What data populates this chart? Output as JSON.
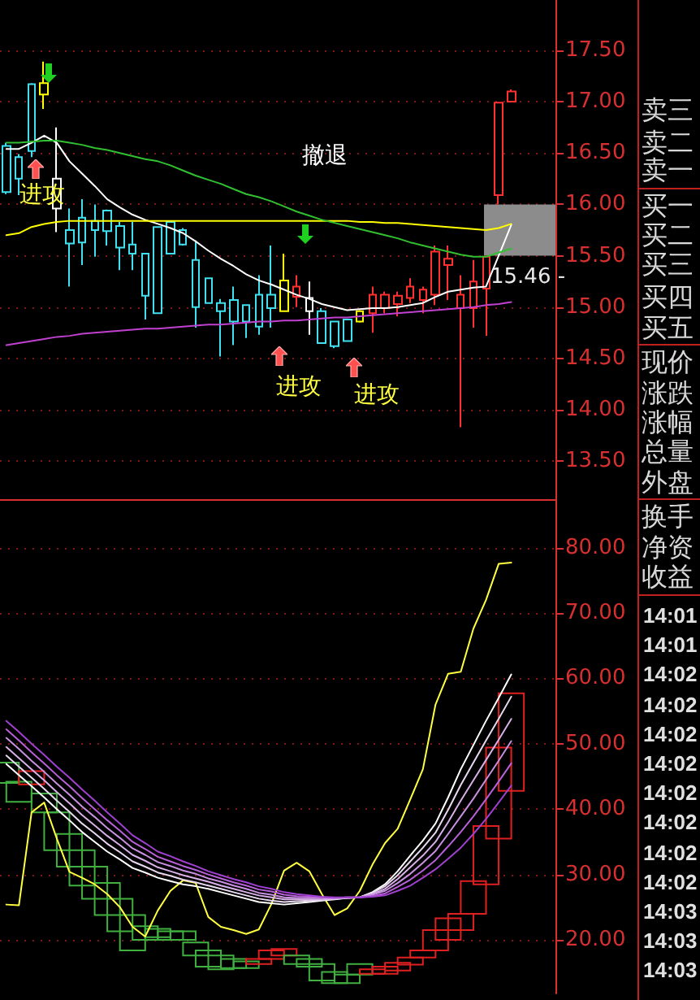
{
  "chart_data": [
    {
      "type": "candlestick",
      "categories": [
        null,
        null,
        null,
        null,
        null,
        null,
        null,
        null,
        null,
        null,
        null,
        null,
        null,
        null,
        null,
        null,
        null,
        null,
        null,
        null,
        null,
        null,
        null,
        null,
        null,
        null,
        null,
        null,
        null,
        null,
        null,
        null,
        null,
        null,
        null,
        null,
        null,
        null,
        null,
        null,
        null,
        null,
        null,
        null
      ],
      "ohlc": [
        [
          16.57,
          16.6,
          16.1,
          16.12
        ],
        [
          16.46,
          16.49,
          16.09,
          16.25
        ],
        [
          17.17,
          17.18,
          16.46,
          16.52
        ],
        [
          17.18,
          17.39,
          16.93,
          17.07
        ],
        [
          16.25,
          16.75,
          15.73,
          15.96
        ],
        [
          15.75,
          15.96,
          15.2,
          15.62
        ],
        [
          15.87,
          16.05,
          15.41,
          15.63
        ],
        [
          15.84,
          16.0,
          15.49,
          15.75
        ],
        [
          15.94,
          15.95,
          15.6,
          15.74
        ],
        [
          15.79,
          15.83,
          15.36,
          15.58
        ],
        [
          15.61,
          15.83,
          15.36,
          15.52
        ],
        [
          15.52,
          15.52,
          14.88,
          15.11
        ],
        [
          15.78,
          15.78,
          14.94,
          14.94
        ],
        [
          15.83,
          15.84,
          15.52,
          15.52
        ],
        [
          15.75,
          15.77,
          15.6,
          15.61
        ],
        [
          15.46,
          15.65,
          14.8,
          15.0
        ],
        [
          15.28,
          15.28,
          15.04,
          15.04
        ],
        [
          15.04,
          15.08,
          14.52,
          14.96
        ],
        [
          15.07,
          15.2,
          14.63,
          14.86
        ],
        [
          15.02,
          15.02,
          14.7,
          14.86
        ],
        [
          15.12,
          15.31,
          14.73,
          14.81
        ],
        [
          15.12,
          15.6,
          14.8,
          14.99
        ],
        [
          15.26,
          15.52,
          14.96,
          14.96
        ],
        [
          15.1,
          15.31,
          15.0,
          15.2
        ],
        [
          15.09,
          15.25,
          14.73,
          14.96
        ],
        [
          14.96,
          14.99,
          14.65,
          14.65
        ],
        [
          14.86,
          14.86,
          14.6,
          14.62
        ],
        [
          14.88,
          14.88,
          14.67,
          14.67
        ],
        [
          14.96,
          14.97,
          14.85,
          14.86
        ],
        [
          14.94,
          15.2,
          14.75,
          15.12
        ],
        [
          14.99,
          15.15,
          14.94,
          15.12
        ],
        [
          15.03,
          15.15,
          14.91,
          15.11
        ],
        [
          15.09,
          15.28,
          15.04,
          15.2
        ],
        [
          15.07,
          15.2,
          14.94,
          15.17
        ],
        [
          15.12,
          15.6,
          15.02,
          15.54
        ],
        [
          15.41,
          15.6,
          15.07,
          15.47
        ],
        [
          14.99,
          15.31,
          13.83,
          15.12
        ],
        [
          14.99,
          15.46,
          14.8,
          15.25
        ],
        [
          15.18,
          15.49,
          14.72,
          15.49
        ],
        [
          16.09,
          16.99,
          16.0,
          16.99
        ],
        [
          17.0,
          17.12,
          17.0,
          17.1
        ],
        null,
        null,
        null
      ],
      "colors": [
        "#40e0f0",
        "#40e0f0",
        "#40e0f0",
        "#ffff00",
        "#ffffff",
        "#40e0f0",
        "#40e0f0",
        "#40e0f0",
        "#40e0f0",
        "#40e0f0",
        "#40e0f0",
        "#40e0f0",
        "#40e0f0",
        "#40e0f0",
        "#40e0f0",
        "#40e0f0",
        "#40e0f0",
        "#40e0f0",
        "#40e0f0",
        "#40e0f0",
        "#40e0f0",
        "#40e0f0",
        "#ffff00",
        "#ff3030",
        "#ffffff",
        "#40e0f0",
        "#40e0f0",
        "#40e0f0",
        "#ffff00",
        "#ff3030",
        "#ff3030",
        "#ff3030",
        "#ff3030",
        "#ff3030",
        "#ff3030",
        "#ff3030",
        "#ff3030",
        "#ff3030",
        "#ff3030",
        "#ff3030",
        "#ff3030",
        null,
        null,
        null
      ],
      "series": [
        {
          "type": "line",
          "color": "#ffffff",
          "values": [
            16.54,
            16.54,
            16.6,
            16.67,
            16.6,
            16.42,
            16.3,
            16.18,
            16.05,
            15.97,
            15.9,
            15.85,
            15.81,
            15.77,
            15.72,
            15.64,
            15.55,
            15.47,
            15.4,
            15.32,
            15.26,
            15.22,
            15.17,
            15.12,
            15.08,
            15.03,
            15.0,
            14.97,
            14.98,
            14.99,
            14.99,
            15.0,
            15.02,
            15.04,
            15.1,
            15.15,
            15.17,
            15.19,
            15.2,
            15.5,
            15.8,
            null,
            null,
            null
          ]
        },
        {
          "type": "line",
          "color": "#ffff00",
          "values": [
            15.7,
            15.72,
            15.78,
            15.81,
            15.83,
            15.84,
            15.84,
            15.84,
            15.84,
            15.84,
            15.84,
            15.84,
            15.84,
            15.84,
            15.84,
            15.84,
            15.84,
            15.84,
            15.84,
            15.84,
            15.84,
            15.84,
            15.84,
            15.84,
            15.84,
            15.84,
            15.84,
            15.84,
            15.83,
            15.83,
            15.82,
            15.82,
            15.81,
            15.8,
            15.79,
            15.78,
            15.77,
            15.76,
            15.75,
            15.77,
            15.81,
            null,
            null,
            null
          ]
        },
        {
          "type": "line",
          "color": "#30c030",
          "values": [
            16.6,
            16.6,
            16.61,
            16.62,
            16.62,
            16.6,
            16.58,
            16.55,
            16.53,
            16.5,
            16.47,
            16.44,
            16.42,
            16.38,
            16.33,
            16.28,
            16.24,
            16.2,
            16.15,
            16.1,
            16.07,
            16.03,
            15.98,
            15.93,
            15.89,
            15.85,
            15.82,
            15.79,
            15.76,
            15.73,
            15.7,
            15.67,
            15.63,
            15.6,
            15.57,
            15.54,
            15.51,
            15.49,
            15.49,
            15.53,
            15.57,
            null,
            null,
            null
          ]
        },
        {
          "type": "line",
          "color": "#c040d0",
          "values": [
            14.63,
            14.65,
            14.67,
            14.69,
            14.71,
            14.72,
            14.74,
            14.75,
            14.76,
            14.77,
            14.78,
            14.79,
            14.79,
            14.8,
            14.81,
            14.82,
            14.83,
            14.83,
            14.84,
            14.85,
            14.86,
            14.86,
            14.87,
            14.87,
            14.88,
            14.89,
            14.9,
            14.9,
            14.91,
            14.92,
            14.93,
            14.94,
            14.95,
            14.96,
            14.97,
            14.98,
            14.99,
            15.0,
            15.02,
            15.03,
            15.05,
            null,
            null,
            null
          ]
        }
      ],
      "ylim": [
        13.13,
        17.99
      ],
      "yticks": [
        {
          "value": 13.5,
          "label": "13.50"
        },
        {
          "value": 14,
          "label": "14.00"
        },
        {
          "value": 14.5,
          "label": "14.50"
        },
        {
          "value": 15,
          "label": "15.00"
        },
        {
          "value": 15.5,
          "label": "15.50"
        },
        {
          "value": 16,
          "label": "16.00"
        },
        {
          "value": 16.5,
          "label": "16.50"
        },
        {
          "value": 17,
          "label": "17.00"
        },
        {
          "value": 17.5,
          "label": "17.50"
        }
      ],
      "grid": "y",
      "tick_labels": "y",
      "marker": "none",
      "bands": [
        {
          "axis": "y",
          "from": 15.5,
          "to": 16.0,
          "color": "#8c8c8c"
        }
      ],
      "annotations": [
        "进攻",
        "撤退",
        "进攻",
        "进攻",
        "15.46 -",
        "卖三",
        "卖二",
        "卖一",
        "买一",
        "买二",
        "买三",
        "买四",
        "买五",
        "现价",
        "涨跌",
        "涨幅",
        "总量",
        "外盘"
      ]
    },
    {
      "type": "line",
      "categories": [
        null,
        null,
        null,
        null,
        null,
        null,
        null,
        null,
        null,
        null,
        null,
        null,
        null,
        null,
        null,
        null,
        null,
        null,
        null,
        null,
        null,
        null,
        null,
        null,
        null,
        null,
        null,
        null,
        null,
        null,
        null,
        null,
        null,
        null,
        null,
        null,
        null,
        null,
        null,
        null,
        null,
        null,
        null,
        null
      ],
      "series": [
        {
          "type": "bar",
          "base": [
            44.0,
            41.1,
            43.8,
            39.5,
            33.7,
            31.2,
            28.3,
            26.3,
            23.8,
            21.3,
            18.4,
            20.0,
            20.4,
            20.0,
            20.0,
            17.6,
            15.9,
            15.5,
            15.7,
            15.7,
            16.3,
            17.1,
            17.6,
            16.3,
            15.9,
            13.8,
            13.4,
            13.4,
            14.7,
            14.8,
            14.8,
            15.3,
            16.2,
            17.3,
            18.4,
            20.0,
            21.5,
            24.0,
            28.5,
            35.5,
            42.8,
            null,
            null,
            null
          ],
          "values": [
            3.1,
            3.1,
            2.0,
            2.9,
            5.8,
            5.0,
            5.4,
            4.9,
            4.9,
            5.0,
            5.4,
            2.1,
            1.3,
            1.3,
            1.3,
            2.0,
            2.5,
            2.1,
            1.4,
            1.0,
            0.8,
            1.3,
            1.0,
            1.3,
            1.2,
            2.5,
            1.7,
            1.3,
            1.6,
            0.7,
            1.1,
            1.2,
            1.1,
            1.1,
            3.1,
            3.3,
            2.5,
            5.0,
            8.9,
            13.9,
            14.9,
            null,
            null,
            null
          ],
          "colors": [
            "#40b040",
            "#40b040",
            "#e02020",
            "#40b040",
            "#40b040",
            "#40b040",
            "#40b040",
            "#40b040",
            "#40b040",
            "#40b040",
            "#40b040",
            "#40b040",
            "#40b040",
            "#40b040",
            "#40b040",
            "#40b040",
            "#40b040",
            "#40b040",
            "#40b040",
            "#40b040",
            "#e02020",
            "#e02020",
            "#e02020",
            "#40b040",
            "#40b040",
            "#40b040",
            "#40b040",
            "#40b040",
            "#40b040",
            "#e02020",
            "#e02020",
            "#e02020",
            "#e02020",
            "#e02020",
            "#e02020",
            "#e02020",
            "#e02020",
            "#e02020",
            "#e02020",
            "#e02020",
            "#e02020",
            null,
            null,
            null
          ]
        },
        {
          "type": "line",
          "color": "#ffff40",
          "values": [
            25.4,
            25.3,
            39.5,
            41.0,
            35.5,
            30.4,
            29.5,
            28.5,
            27.0,
            25.0,
            22.0,
            20.5,
            24.5,
            27.5,
            29.1,
            28.7,
            23.5,
            22.0,
            21.5,
            20.9,
            21.6,
            25.5,
            30.6,
            31.8,
            30.5,
            27.0,
            23.8,
            24.8,
            27.5,
            31.5,
            34.8,
            37.0,
            41.5,
            46.1,
            56.0,
            60.7,
            61.0,
            67.6,
            72.0,
            77.5,
            77.7,
            null,
            null,
            null
          ]
        },
        {
          "type": "line",
          "color": "#ffffff",
          "values": [
            46.9,
            45.2,
            43.5,
            41.8,
            40.0,
            38.3,
            36.5,
            35.0,
            33.5,
            32.3,
            31.0,
            30.3,
            29.5,
            29.0,
            28.5,
            28.2,
            27.8,
            27.3,
            26.8,
            26.3,
            25.8,
            25.6,
            25.4,
            25.6,
            25.8,
            26.0,
            26.2,
            26.4,
            26.5,
            27.3,
            28.5,
            30.5,
            32.9,
            35.2,
            37.8,
            41.8,
            46.1,
            49.8,
            53.5,
            57.0,
            60.6,
            null,
            null,
            null
          ]
        },
        {
          "type": "line",
          "color": "#e8d8f0",
          "values": [
            48.2,
            46.5,
            44.8,
            43.1,
            41.3,
            39.6,
            37.8,
            36.3,
            34.7,
            33.4,
            32.0,
            31.2,
            30.3,
            29.8,
            29.2,
            28.8,
            28.3,
            27.8,
            27.3,
            26.8,
            26.3,
            26.0,
            25.8,
            25.9,
            26.0,
            26.1,
            26.3,
            26.4,
            26.5,
            27.2,
            28.2,
            29.9,
            32.0,
            34.1,
            36.4,
            39.9,
            43.7,
            47.1,
            50.5,
            53.8,
            57.2,
            null,
            null,
            null
          ]
        },
        {
          "type": "line",
          "color": "#d8b0e8",
          "values": [
            49.5,
            47.8,
            46.1,
            44.4,
            42.6,
            40.9,
            39.1,
            37.5,
            35.9,
            34.5,
            33.0,
            32.1,
            31.1,
            30.5,
            29.9,
            29.4,
            28.9,
            28.3,
            27.8,
            27.3,
            26.8,
            26.5,
            26.2,
            26.2,
            26.2,
            26.2,
            26.3,
            26.4,
            26.5,
            27.0,
            27.8,
            29.3,
            31.1,
            32.9,
            35.0,
            38.0,
            41.3,
            44.4,
            47.5,
            50.6,
            53.8,
            null,
            null,
            null
          ]
        },
        {
          "type": "line",
          "color": "#c890e0",
          "values": [
            50.9,
            49.2,
            47.4,
            45.7,
            43.9,
            42.2,
            40.4,
            38.8,
            37.1,
            35.6,
            34.0,
            33.0,
            31.9,
            31.3,
            30.6,
            30.1,
            29.4,
            28.9,
            28.3,
            27.8,
            27.2,
            26.9,
            26.5,
            26.4,
            26.4,
            26.4,
            26.4,
            26.5,
            26.5,
            26.9,
            27.5,
            28.7,
            30.1,
            31.8,
            33.6,
            36.2,
            38.9,
            41.6,
            44.5,
            47.4,
            50.4,
            null,
            null,
            null
          ]
        },
        {
          "type": "line",
          "color": "#b860d8",
          "values": [
            52.2,
            50.5,
            48.7,
            47.0,
            45.2,
            43.5,
            41.7,
            40.0,
            38.3,
            36.7,
            35.0,
            33.9,
            32.7,
            32.0,
            31.3,
            30.7,
            30.0,
            29.4,
            28.8,
            28.3,
            27.7,
            27.4,
            26.9,
            26.7,
            26.6,
            26.5,
            26.4,
            26.5,
            26.5,
            26.7,
            27.1,
            28.1,
            29.2,
            30.6,
            32.2,
            34.3,
            36.5,
            38.9,
            41.5,
            44.2,
            47.0,
            null,
            null,
            null
          ]
        },
        {
          "type": "line",
          "color": "#a040d0",
          "values": [
            53.5,
            51.8,
            50.0,
            48.3,
            46.5,
            44.8,
            43.0,
            41.3,
            39.5,
            37.8,
            36.0,
            34.8,
            33.5,
            32.8,
            32.0,
            31.3,
            30.5,
            29.9,
            29.3,
            28.8,
            28.2,
            27.8,
            27.3,
            27.0,
            26.8,
            26.6,
            26.5,
            26.5,
            26.5,
            26.6,
            26.8,
            27.5,
            28.3,
            29.5,
            30.8,
            32.4,
            34.1,
            36.2,
            38.5,
            41.0,
            43.6,
            null,
            null,
            null
          ]
        }
      ],
      "ylim": [
        11.8,
        87.4
      ],
      "yticks": [
        {
          "value": 20,
          "label": "20.00"
        },
        {
          "value": 30,
          "label": "30.00"
        },
        {
          "value": 40,
          "label": "40.00"
        },
        {
          "value": 50,
          "label": "50.00"
        },
        {
          "value": 60,
          "label": "60.00"
        },
        {
          "value": 70,
          "label": "70.00"
        },
        {
          "value": 80,
          "label": "80.00"
        }
      ],
      "grid": "y",
      "tick_labels": "y",
      "marker": "none",
      "annotations": [
        "换手",
        "净资",
        "收益",
        "14:01",
        "14:01",
        "14:02",
        "14:02",
        "14:02",
        "14:02",
        "14:02",
        "14:02",
        "14:02",
        "14:02",
        "14:03",
        "14:03",
        "14:03"
      ]
    }
  ]
}
